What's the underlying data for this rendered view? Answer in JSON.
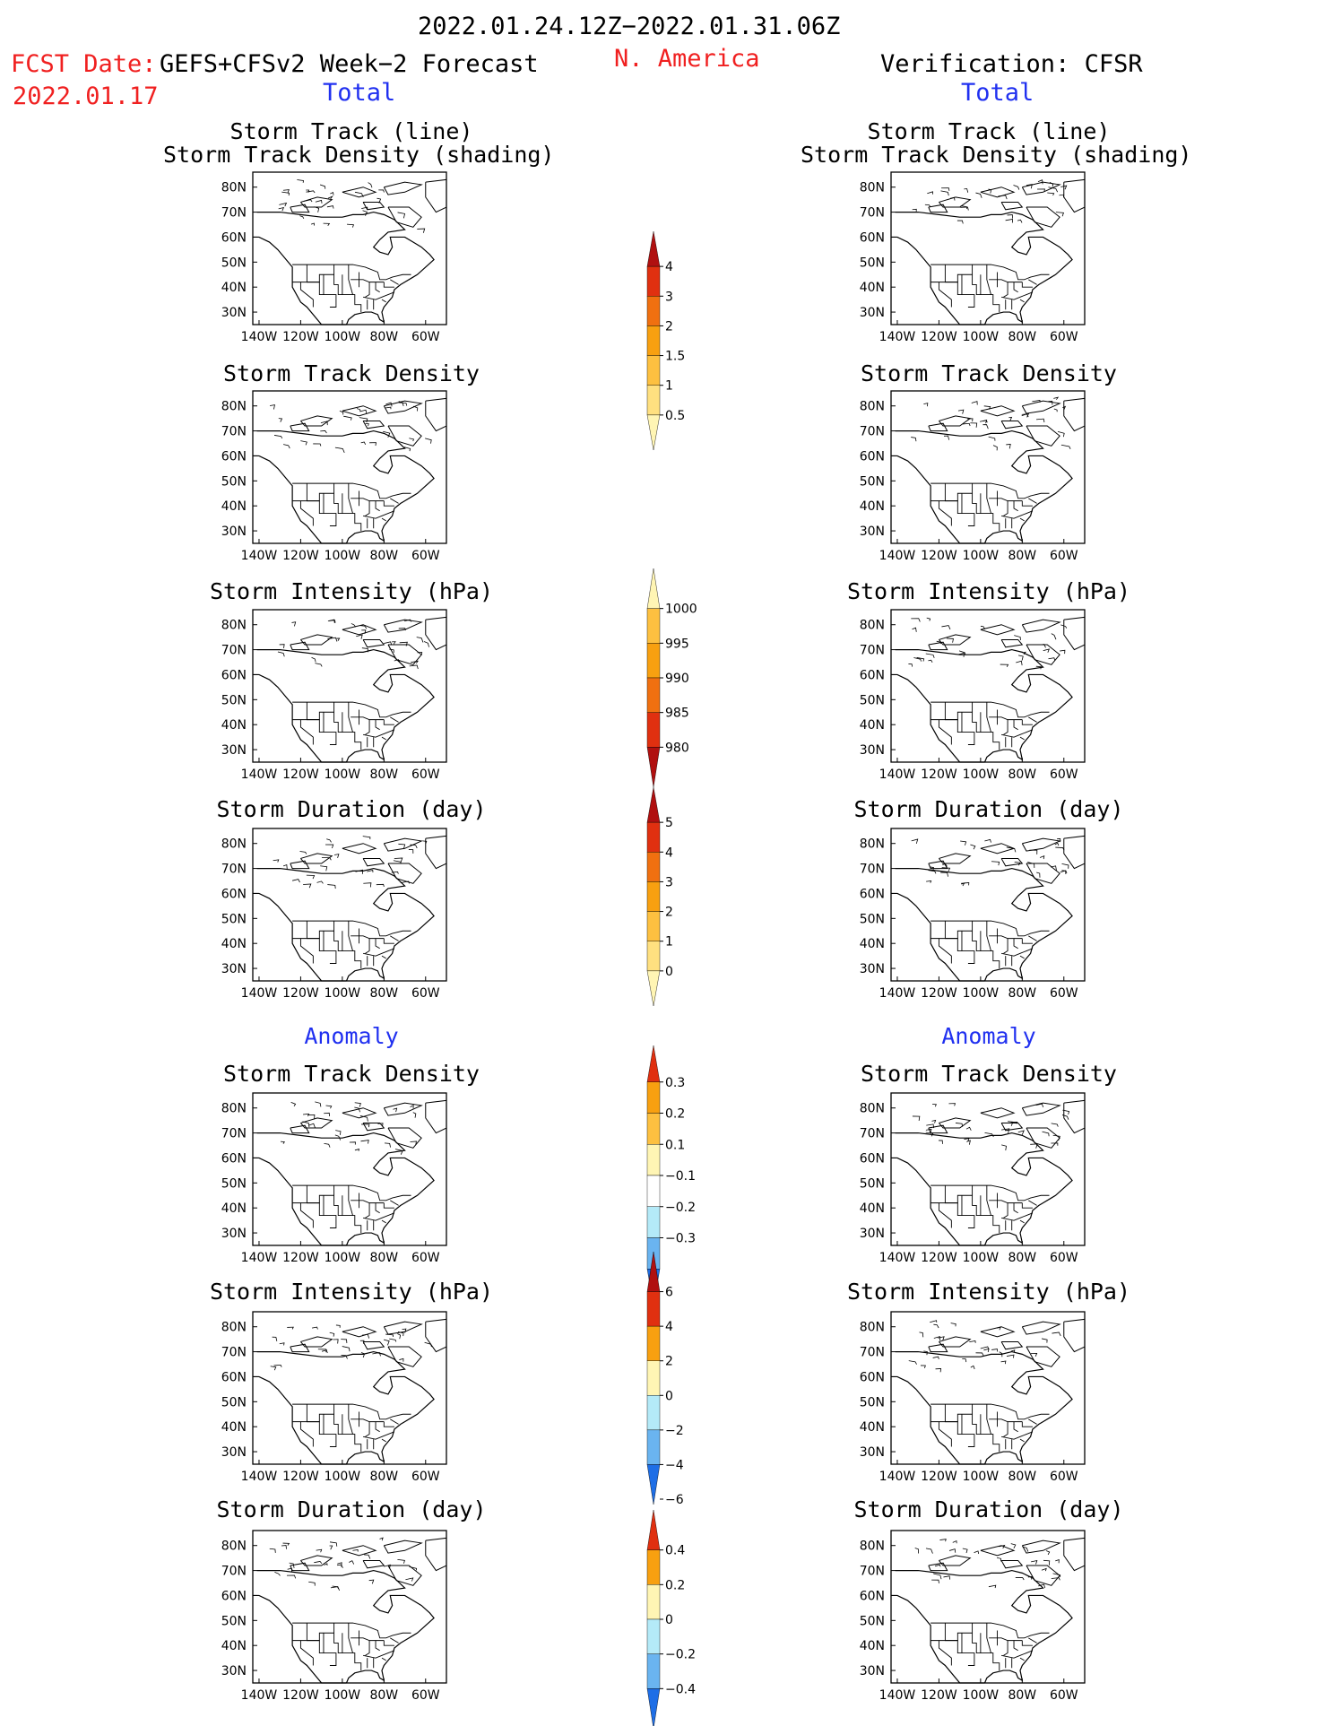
{
  "header": {
    "period": "2022.01.24.12Z−2022.01.31.06Z",
    "fcst_label": "FCST Date:",
    "fcst_model": "GEFS+CFSv2 Week−2 Forecast",
    "fcst_date": "2022.01.17",
    "region": "N. America",
    "verification": "Verification: CFSR",
    "left_section": "Total",
    "right_section": "Total",
    "left_anom_section": "Anomaly",
    "right_anom_section": "Anomaly"
  },
  "axes": {
    "lat_ticks": [
      "80N",
      "70N",
      "60N",
      "50N",
      "40N",
      "30N"
    ],
    "lon_ticks": [
      "140W",
      "120W",
      "100W",
      "80W",
      "60W"
    ]
  },
  "panel_titles": {
    "storm_track_line": "Storm Track (line)",
    "storm_track_shading": "Storm Track Density (shading)",
    "density": "Storm Track Density",
    "intensity": "Storm Intensity (hPa)",
    "duration": "Storm Duration (day)"
  },
  "colors": {
    "track_line": "#1e96e6",
    "c_pale": "#fff5b4",
    "c_yellow": "#ffe080",
    "c_lorange": "#fdc040",
    "c_orange": "#f8a010",
    "c_dorange": "#f07010",
    "c_red": "#e03010",
    "c_dred": "#b01010",
    "c_lblue": "#b4eaf8",
    "c_mblue": "#6ab4f0",
    "c_blue": "#1e6ee6",
    "header_red": "#f02020",
    "header_blue": "#2030f0"
  },
  "chart_data": [
    {
      "type": "colorbar",
      "name": "Total Storm Track Density",
      "labels": [
        "0.5",
        "1",
        "1.5",
        "2",
        "3",
        "4"
      ],
      "colors": [
        "#fff5b4",
        "#ffe080",
        "#fdc040",
        "#f8a010",
        "#f07010",
        "#e03010",
        "#b01010"
      ]
    },
    {
      "type": "colorbar",
      "name": "Total Storm Intensity (hPa)",
      "labels": [
        "1000",
        "995",
        "990",
        "985",
        "980"
      ],
      "colors": [
        "#fff5b4",
        "#fdc040",
        "#f8a010",
        "#f07010",
        "#e03010",
        "#b01010"
      ]
    },
    {
      "type": "colorbar",
      "name": "Total Storm Duration (day)",
      "labels": [
        "0",
        "1",
        "2",
        "3",
        "4",
        "5"
      ],
      "colors": [
        "#fff5b4",
        "#ffe080",
        "#fdc040",
        "#f8a010",
        "#f07010",
        "#e03010",
        "#b01010"
      ]
    },
    {
      "type": "colorbar",
      "name": "Anomaly Storm Track Density",
      "labels": [
        "0.3",
        "0.2",
        "0.1",
        "−0.1",
        "−0.2",
        "−0.3"
      ],
      "colors": [
        "#e03010",
        "#f8a010",
        "#fdc040",
        "#fff5b4",
        "#ffffff",
        "#b4eaf8",
        "#6ab4f0",
        "#1e6ee6"
      ]
    },
    {
      "type": "colorbar",
      "name": "Anomaly Storm Intensity (hPa)",
      "labels": [
        "6",
        "4",
        "2",
        "0",
        "−2",
        "−4",
        "−6"
      ],
      "colors": [
        "#b01010",
        "#e03010",
        "#f8a010",
        "#fff5b4",
        "#b4eaf8",
        "#6ab4f0",
        "#1e6ee6"
      ]
    },
    {
      "type": "colorbar",
      "name": "Anomaly Storm Duration (day)",
      "labels": [
        "0.4",
        "0.2",
        "0",
        "−0.2",
        "−0.4"
      ],
      "colors": [
        "#e03010",
        "#f8a010",
        "#fff5b4",
        "#b4eaf8",
        "#6ab4f0",
        "#1e6ee6"
      ]
    }
  ]
}
